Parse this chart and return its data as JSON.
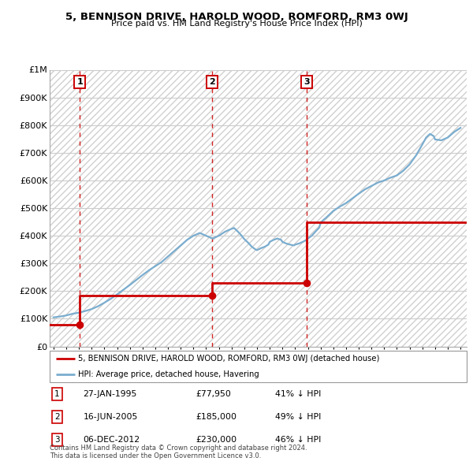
{
  "title": "5, BENNISON DRIVE, HAROLD WOOD, ROMFORD, RM3 0WJ",
  "subtitle": "Price paid vs. HM Land Registry's House Price Index (HPI)",
  "ylim": [
    0,
    1000000
  ],
  "yticks": [
    0,
    100000,
    200000,
    300000,
    400000,
    500000,
    600000,
    700000,
    800000,
    900000,
    1000000
  ],
  "ytick_labels": [
    "£0",
    "£100K",
    "£200K",
    "£300K",
    "£400K",
    "£500K",
    "£600K",
    "£700K",
    "£800K",
    "£900K",
    "£1M"
  ],
  "xlim_start": 1992.7,
  "xlim_end": 2025.5,
  "sale_dates": [
    1995.07,
    2005.46,
    2012.92
  ],
  "sale_prices": [
    77950,
    185000,
    230000
  ],
  "sale_labels": [
    "1",
    "2",
    "3"
  ],
  "red_line_x": [
    1992.7,
    1995.07,
    1995.07,
    2005.46,
    2005.46,
    2012.92,
    2012.92,
    2025.5
  ],
  "red_line_y": [
    77950,
    77950,
    185000,
    185000,
    230000,
    230000,
    450000,
    450000
  ],
  "hpi_x": [
    1993.0,
    1993.5,
    1994.0,
    1994.5,
    1995.0,
    1995.5,
    1996.0,
    1996.5,
    1997.0,
    1997.5,
    1998.0,
    1998.5,
    1999.0,
    1999.5,
    2000.0,
    2000.5,
    2001.0,
    2001.5,
    2002.0,
    2002.5,
    2003.0,
    2003.5,
    2004.0,
    2004.5,
    2005.0,
    2005.5,
    2006.0,
    2006.5,
    2007.0,
    2007.2,
    2007.5,
    2007.8,
    2008.0,
    2008.3,
    2008.6,
    2008.9,
    2009.0,
    2009.3,
    2009.6,
    2009.9,
    2010.0,
    2010.3,
    2010.6,
    2010.9,
    2011.0,
    2011.3,
    2011.6,
    2011.9,
    2012.0,
    2012.3,
    2012.6,
    2012.9,
    2013.0,
    2013.3,
    2013.6,
    2013.9,
    2014.0,
    2014.5,
    2015.0,
    2015.5,
    2016.0,
    2016.5,
    2017.0,
    2017.5,
    2018.0,
    2018.5,
    2019.0,
    2019.5,
    2020.0,
    2020.5,
    2021.0,
    2021.5,
    2022.0,
    2022.3,
    2022.6,
    2022.9,
    2023.0,
    2023.5,
    2024.0,
    2024.5,
    2025.0
  ],
  "hpi_y": [
    105000,
    108000,
    112000,
    118000,
    122000,
    128000,
    135000,
    145000,
    158000,
    172000,
    188000,
    205000,
    222000,
    240000,
    258000,
    275000,
    290000,
    305000,
    325000,
    345000,
    365000,
    385000,
    400000,
    410000,
    400000,
    390000,
    400000,
    415000,
    425000,
    428000,
    415000,
    400000,
    388000,
    375000,
    360000,
    350000,
    348000,
    355000,
    360000,
    368000,
    378000,
    385000,
    390000,
    385000,
    378000,
    372000,
    368000,
    365000,
    368000,
    372000,
    378000,
    385000,
    390000,
    400000,
    415000,
    430000,
    448000,
    468000,
    490000,
    505000,
    518000,
    535000,
    552000,
    568000,
    580000,
    592000,
    600000,
    610000,
    618000,
    635000,
    658000,
    690000,
    730000,
    755000,
    768000,
    760000,
    748000,
    745000,
    755000,
    775000,
    790000
  ],
  "red_color": "#cc0000",
  "blue_color": "#7aadcf",
  "legend_label_red": "5, BENNISON DRIVE, HAROLD WOOD, ROMFORD, RM3 0WJ (detached house)",
  "legend_label_blue": "HPI: Average price, detached house, Havering",
  "sale_info": [
    {
      "label": "1",
      "date": "27-JAN-1995",
      "price": "£77,950",
      "hpi_pct": "41% ↓ HPI"
    },
    {
      "label": "2",
      "date": "16-JUN-2005",
      "price": "£185,000",
      "hpi_pct": "49% ↓ HPI"
    },
    {
      "label": "3",
      "date": "06-DEC-2012",
      "price": "£230,000",
      "hpi_pct": "46% ↓ HPI"
    }
  ],
  "footer": "Contains HM Land Registry data © Crown copyright and database right 2024.\nThis data is licensed under the Open Government Licence v3.0."
}
